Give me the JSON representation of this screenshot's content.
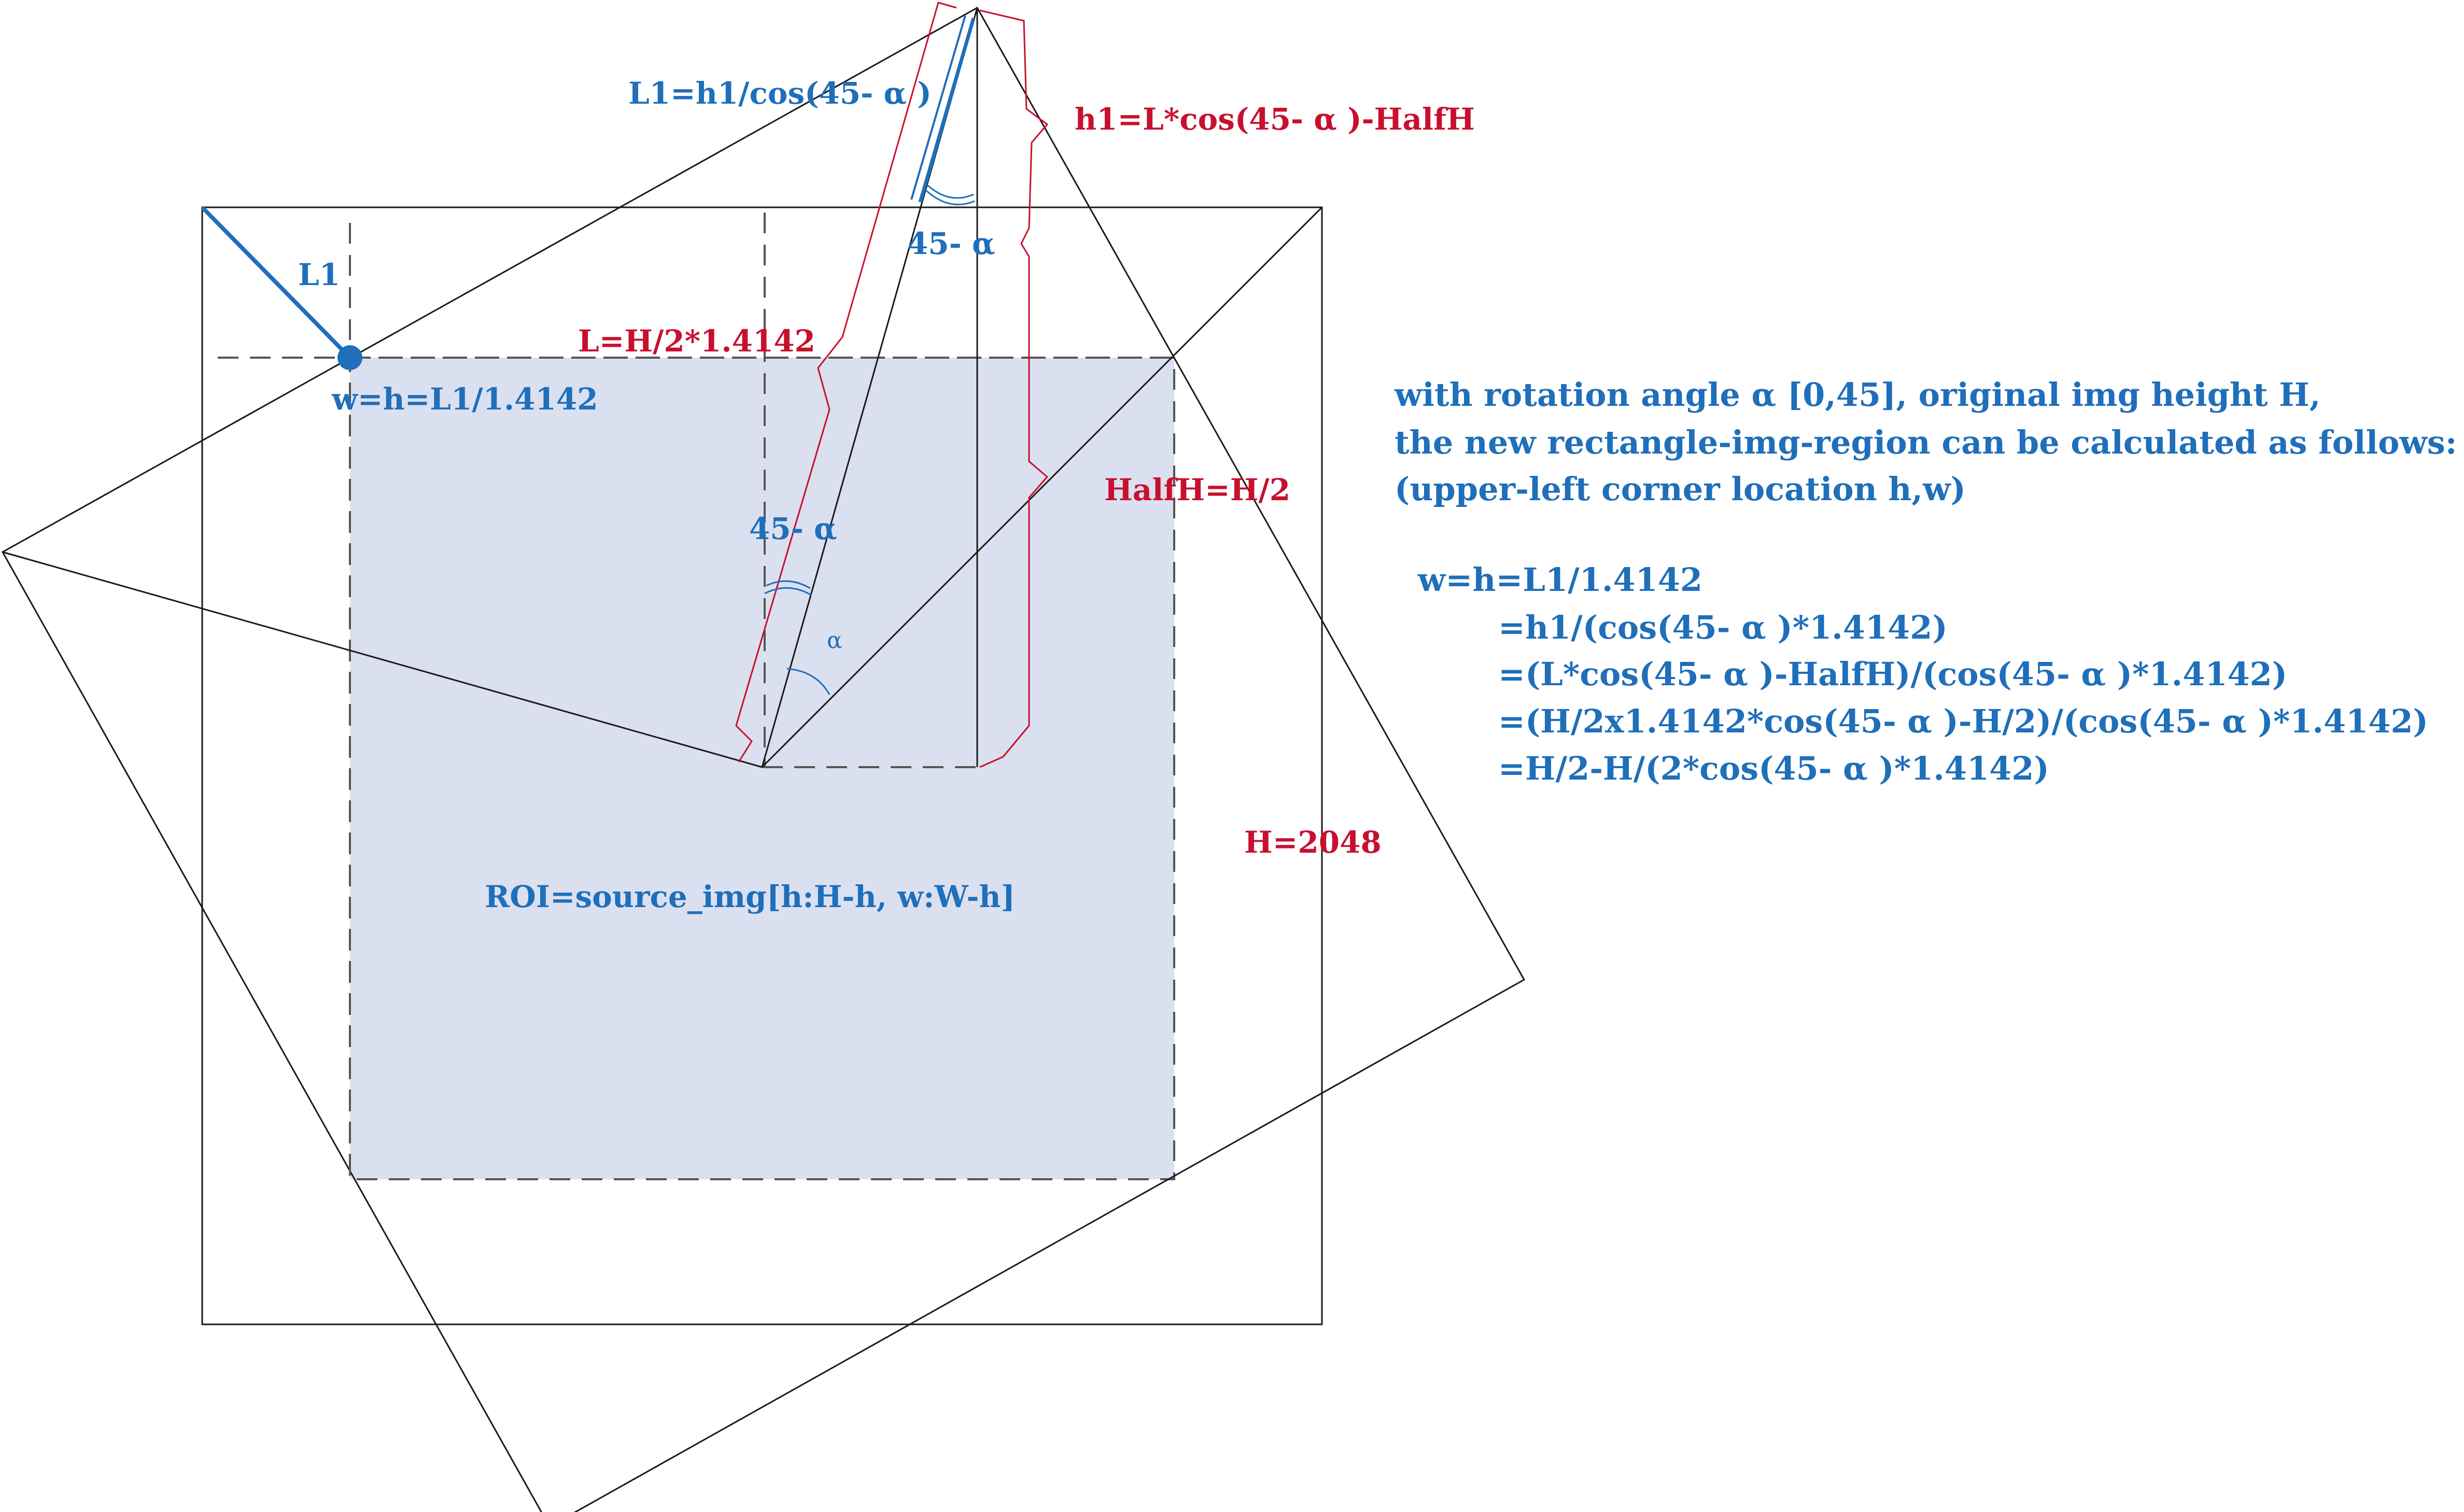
{
  "colors": {
    "blue": "#1f6fba",
    "red": "#c8102e",
    "roi_fill": "#dbe0f0",
    "line": "#1a1a1a"
  },
  "labels": {
    "l1_formula": "L1=h1/cos(45- α )",
    "h1_formula": "h1=L*cos(45- α )-HalfH",
    "l1": "L1",
    "angle_top": "45- α",
    "l_formula": "L=H/2*1.4142",
    "w_eq_h": "w=h=L1/1.4142",
    "halfh": "HalfH=H/2",
    "angle_mid": "45- α",
    "alpha": "α",
    "h_value": "H=2048",
    "roi": "ROI=source_img[h:H-h, w:W-h]"
  },
  "notes": {
    "intro": [
      "with rotation angle α [0,45], original img height H,",
      "the new rectangle-img-region can be calculated as follows:",
      "(upper-left corner location h,w)"
    ],
    "equations": [
      "w=h=L1/1.4142",
      "=h1/(cos(45- α )*1.4142)",
      "=(L*cos(45- α )-HalfH)/(cos(45- α )*1.4142)",
      "=(H/2x1.4142*cos(45- α )-H/2)/(cos(45- α )*1.4142)",
      "=H/2-H/(2*cos(45- α )*1.4142)"
    ]
  }
}
